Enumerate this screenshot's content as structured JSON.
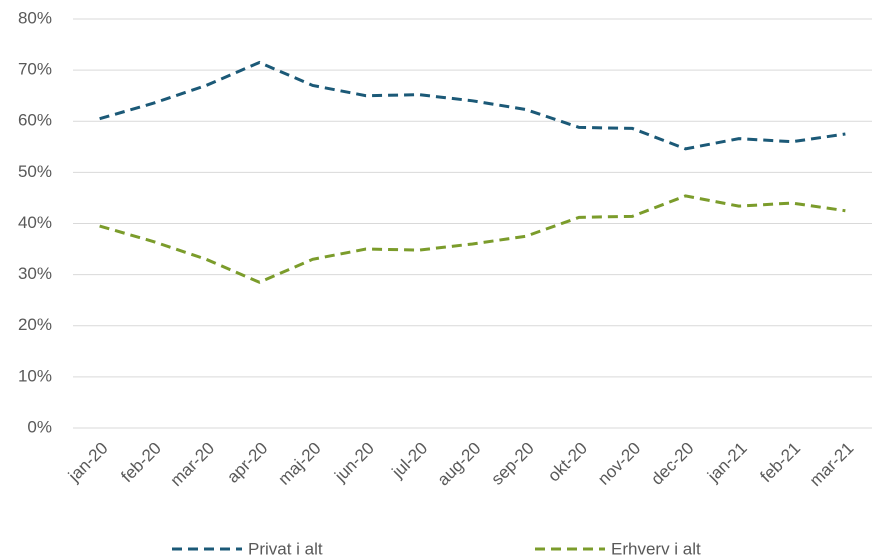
{
  "chart_data": {
    "type": "line",
    "categories": [
      "jan-20",
      "feb-20",
      "mar-20",
      "apr-20",
      "maj-20",
      "jun-20",
      "jul-20",
      "aug-20",
      "sep-20",
      "okt-20",
      "nov-20",
      "dec-20",
      "jan-21",
      "feb-21",
      "mar-21"
    ],
    "series": [
      {
        "name": "Privat i alt",
        "color": "#1b5977",
        "values": [
          60.5,
          63.5,
          67,
          71.5,
          67,
          65,
          65.2,
          64,
          62.3,
          58.8,
          58.6,
          54.6,
          56.6,
          56,
          57.5
        ]
      },
      {
        "name": "Erhverv i alt",
        "color": "#7b9c2b",
        "values": [
          39.5,
          36.5,
          33,
          28.5,
          33,
          35,
          34.8,
          36,
          37.5,
          41.2,
          41.4,
          45.4,
          43.4,
          44,
          42.5
        ]
      }
    ],
    "ylim": [
      0,
      80
    ],
    "yticks": [
      {
        "value": 0,
        "label": "0%"
      },
      {
        "value": 10,
        "label": "10%"
      },
      {
        "value": 20,
        "label": "20%"
      },
      {
        "value": 30,
        "label": "30%"
      },
      {
        "value": 40,
        "label": "40%"
      },
      {
        "value": 50,
        "label": "50%"
      },
      {
        "value": 60,
        "label": "60%"
      },
      {
        "value": 70,
        "label": "70%"
      },
      {
        "value": 80,
        "label": "80%"
      }
    ],
    "grid": true,
    "line_style": "dashed",
    "legend": "bottom"
  }
}
